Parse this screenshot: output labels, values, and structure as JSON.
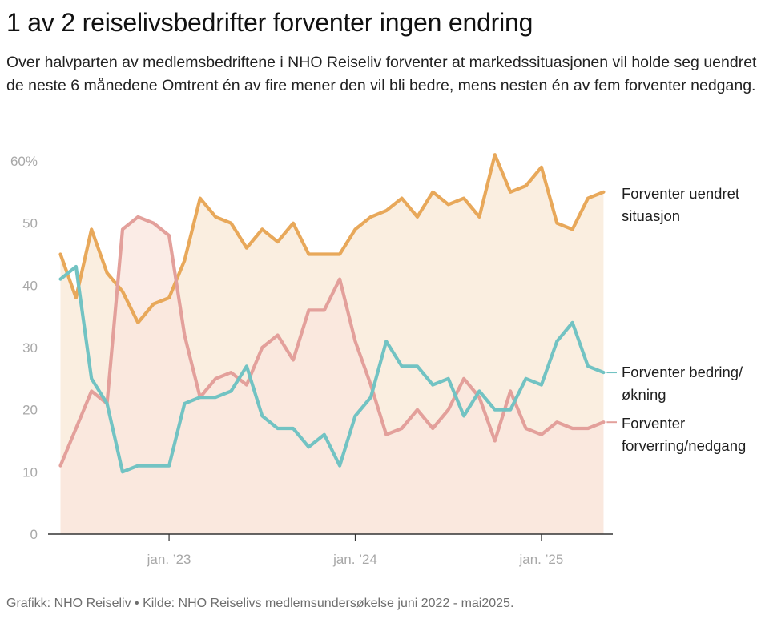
{
  "header": {
    "title": "1 av 2 reiselivsbedrifter forventer ingen endring",
    "subtitle": "Over halvparten av medlemsbedriftene i NHO Reiseliv forventer at markedssituasjonen vil holde seg uendret de neste 6 månedene Omtrent én av fire mener den vil bli bedre, mens nesten én av fem forventer nedgang."
  },
  "footer": {
    "source": "Grafikk: NHO Reiseliv • Kilde: NHO Reiselivs medlemsundersøkelse juni 2022 - mai2025."
  },
  "chart_data": {
    "type": "line",
    "title": "1 av 2 reiselivsbedrifter forventer ingen endring",
    "xlabel": "",
    "ylabel": "",
    "ylim": [
      0,
      60
    ],
    "yticks": [
      {
        "value": 0,
        "label": "0"
      },
      {
        "value": 10,
        "label": "10"
      },
      {
        "value": 20,
        "label": "20"
      },
      {
        "value": 30,
        "label": "30"
      },
      {
        "value": 40,
        "label": "40"
      },
      {
        "value": 50,
        "label": "50"
      },
      {
        "value": 60,
        "label": "60%"
      }
    ],
    "xticks": [
      {
        "index": 7,
        "label": "jan. ’23"
      },
      {
        "index": 19,
        "label": "jan. ’24"
      },
      {
        "index": 31,
        "label": "jan. ’25"
      }
    ],
    "x_range": [
      "2022-06",
      "2025-05"
    ],
    "x_index_domain": [
      -0.8,
      35.6
    ],
    "x": [
      "2022-06",
      "2022-07",
      "2022-08",
      "2022-09",
      "2022-10",
      "2022-11",
      "2022-12",
      "2023-01",
      "2023-02",
      "2023-03",
      "2023-04",
      "2023-05",
      "2023-06",
      "2023-07",
      "2023-08",
      "2023-09",
      "2023-10",
      "2023-11",
      "2023-12",
      "2024-01",
      "2024-02",
      "2024-03",
      "2024-04",
      "2024-05",
      "2024-06",
      "2024-07",
      "2024-08",
      "2024-09",
      "2024-10",
      "2024-11",
      "2024-12",
      "2025-01",
      "2025-02",
      "2025-03",
      "2025-04",
      "2025-05"
    ],
    "series": [
      {
        "name": "Forventer uendret situasjon",
        "label_lines": [
          "Forventer uendret",
          "situasjon"
        ],
        "color": "#e8a85a",
        "area_color": "#faeee0",
        "values": [
          45,
          38,
          49,
          42,
          39,
          34,
          37,
          38,
          44,
          54,
          51,
          50,
          46,
          49,
          47,
          50,
          45,
          45,
          45,
          49,
          51,
          52,
          54,
          51,
          55,
          53,
          54,
          51,
          61,
          55,
          56,
          59,
          50,
          49,
          54,
          55
        ]
      },
      {
        "name": "Forventer bedring/økning",
        "label_lines": [
          "Forventer bedring/",
          "økning"
        ],
        "color": "#72c3c3",
        "values": [
          41,
          43,
          25,
          21,
          10,
          11,
          11,
          11,
          21,
          22,
          22,
          23,
          27,
          19,
          17,
          17,
          14,
          16,
          11,
          19,
          22,
          31,
          27,
          27,
          24,
          25,
          19,
          23,
          20,
          20,
          25,
          24,
          31,
          34,
          27,
          26
        ]
      },
      {
        "name": "Forventer forverring/nedgang",
        "label_lines": [
          "Forventer",
          "forverring/nedgang"
        ],
        "color": "#e3a09b",
        "area_color": "#f9e5dd",
        "values": [
          11,
          17,
          23,
          21,
          49,
          51,
          50,
          48,
          32,
          22,
          25,
          26,
          24,
          30,
          32,
          28,
          36,
          36,
          41,
          31,
          24,
          16,
          17,
          20,
          17,
          20,
          25,
          22,
          15,
          23,
          17,
          16,
          18,
          17,
          17,
          18
        ]
      }
    ]
  }
}
